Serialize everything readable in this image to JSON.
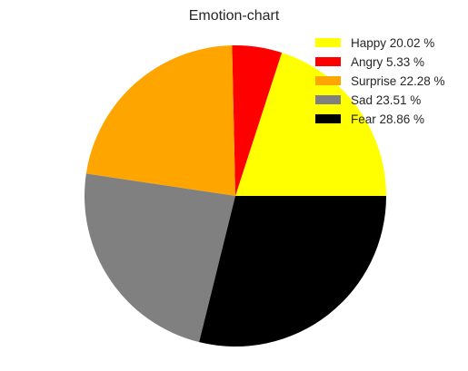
{
  "chart_data": {
    "type": "pie",
    "title": "Emotion-chart",
    "legend_position": "top-right",
    "start_angle_deg": 0,
    "direction": "counterclockwise",
    "slices": [
      {
        "label": "Happy 20.02 %",
        "value": 20.02,
        "color": "#ffff00"
      },
      {
        "label": "Angry 5.33 %",
        "value": 5.33,
        "color": "#ff0000"
      },
      {
        "label": "Surprise 22.28 %",
        "value": 22.28,
        "color": "#ffa500"
      },
      {
        "label": "Sad 23.51 %",
        "value": 23.51,
        "color": "#808080"
      },
      {
        "label": "Fear 28.86 %",
        "value": 28.86,
        "color": "#000000"
      }
    ]
  }
}
